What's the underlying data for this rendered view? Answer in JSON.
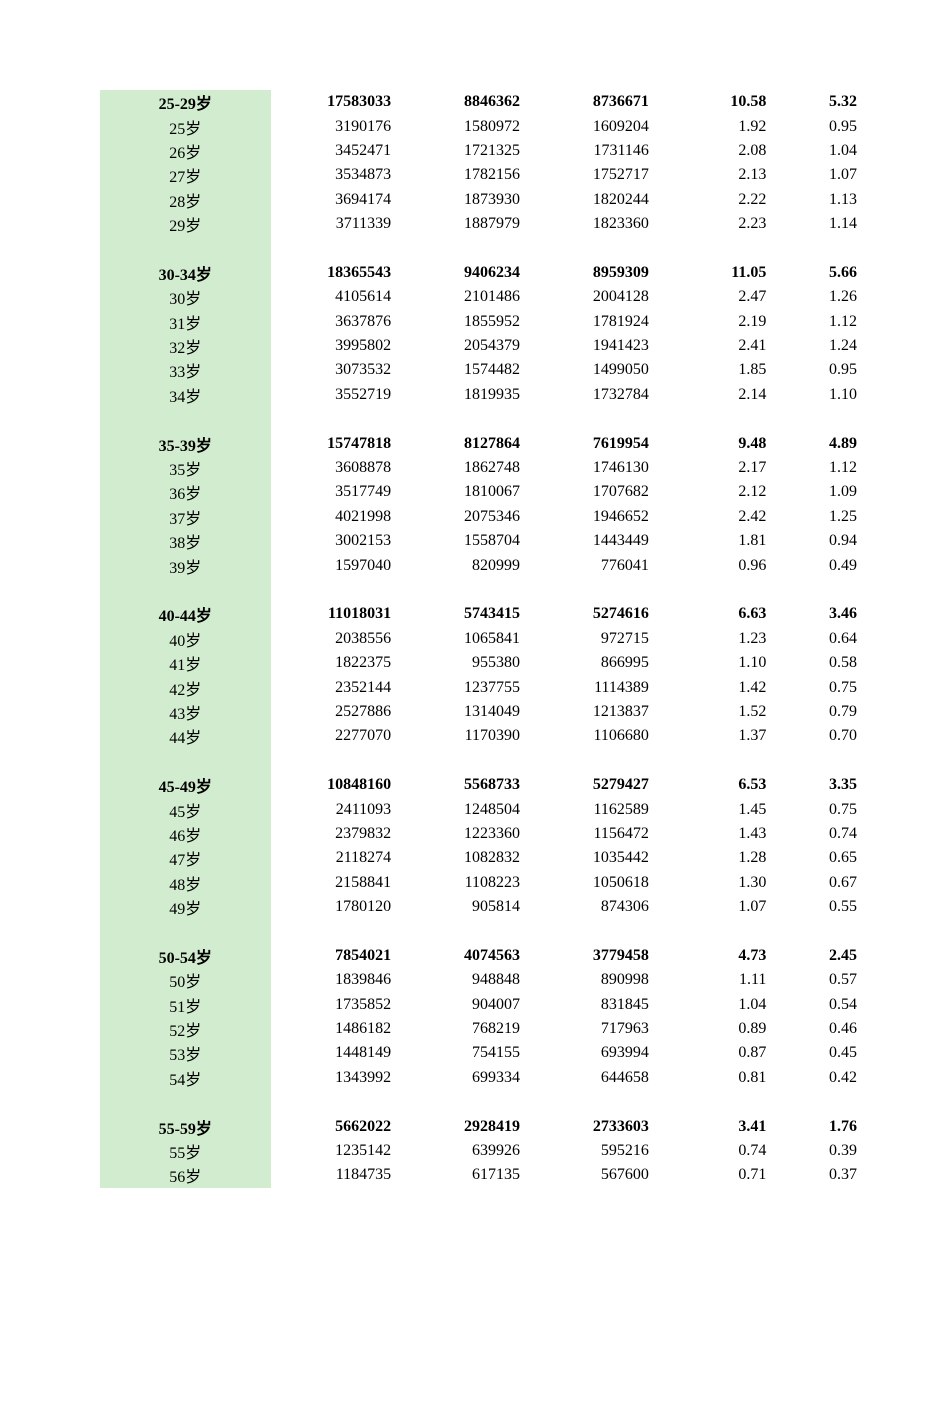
{
  "table": {
    "background_label_color": "#d1ecce",
    "page_background": "#ffffff",
    "text_color": "#000000",
    "font_family": "SimSun / Times New Roman",
    "font_size_pt": 12,
    "column_alignment": [
      "center",
      "right",
      "right",
      "right",
      "right",
      "right"
    ],
    "groups": [
      {
        "header": {
          "label": "25-29岁",
          "v1": "17583033",
          "v2": "8846362",
          "v3": "8736671",
          "v4": "10.58",
          "v5": "5.32"
        },
        "rows": [
          {
            "label": "25岁",
            "v1": "3190176",
            "v2": "1580972",
            "v3": "1609204",
            "v4": "1.92",
            "v5": "0.95"
          },
          {
            "label": "26岁",
            "v1": "3452471",
            "v2": "1721325",
            "v3": "1731146",
            "v4": "2.08",
            "v5": "1.04"
          },
          {
            "label": "27岁",
            "v1": "3534873",
            "v2": "1782156",
            "v3": "1752717",
            "v4": "2.13",
            "v5": "1.07"
          },
          {
            "label": "28岁",
            "v1": "3694174",
            "v2": "1873930",
            "v3": "1820244",
            "v4": "2.22",
            "v5": "1.13"
          },
          {
            "label": "29岁",
            "v1": "3711339",
            "v2": "1887979",
            "v3": "1823360",
            "v4": "2.23",
            "v5": "1.14"
          }
        ]
      },
      {
        "header": {
          "label": "30-34岁",
          "v1": "18365543",
          "v2": "9406234",
          "v3": "8959309",
          "v4": "11.05",
          "v5": "5.66"
        },
        "rows": [
          {
            "label": "30岁",
            "v1": "4105614",
            "v2": "2101486",
            "v3": "2004128",
            "v4": "2.47",
            "v5": "1.26"
          },
          {
            "label": "31岁",
            "v1": "3637876",
            "v2": "1855952",
            "v3": "1781924",
            "v4": "2.19",
            "v5": "1.12"
          },
          {
            "label": "32岁",
            "v1": "3995802",
            "v2": "2054379",
            "v3": "1941423",
            "v4": "2.41",
            "v5": "1.24"
          },
          {
            "label": "33岁",
            "v1": "3073532",
            "v2": "1574482",
            "v3": "1499050",
            "v4": "1.85",
            "v5": "0.95"
          },
          {
            "label": "34岁",
            "v1": "3552719",
            "v2": "1819935",
            "v3": "1732784",
            "v4": "2.14",
            "v5": "1.10"
          }
        ]
      },
      {
        "header": {
          "label": "35-39岁",
          "v1": "15747818",
          "v2": "8127864",
          "v3": "7619954",
          "v4": "9.48",
          "v5": "4.89"
        },
        "rows": [
          {
            "label": "35岁",
            "v1": "3608878",
            "v2": "1862748",
            "v3": "1746130",
            "v4": "2.17",
            "v5": "1.12"
          },
          {
            "label": "36岁",
            "v1": "3517749",
            "v2": "1810067",
            "v3": "1707682",
            "v4": "2.12",
            "v5": "1.09"
          },
          {
            "label": "37岁",
            "v1": "4021998",
            "v2": "2075346",
            "v3": "1946652",
            "v4": "2.42",
            "v5": "1.25"
          },
          {
            "label": "38岁",
            "v1": "3002153",
            "v2": "1558704",
            "v3": "1443449",
            "v4": "1.81",
            "v5": "0.94"
          },
          {
            "label": "39岁",
            "v1": "1597040",
            "v2": "820999",
            "v3": "776041",
            "v4": "0.96",
            "v5": "0.49"
          }
        ]
      },
      {
        "header": {
          "label": "40-44岁",
          "v1": "11018031",
          "v2": "5743415",
          "v3": "5274616",
          "v4": "6.63",
          "v5": "3.46"
        },
        "rows": [
          {
            "label": "40岁",
            "v1": "2038556",
            "v2": "1065841",
            "v3": "972715",
            "v4": "1.23",
            "v5": "0.64"
          },
          {
            "label": "41岁",
            "v1": "1822375",
            "v2": "955380",
            "v3": "866995",
            "v4": "1.10",
            "v5": "0.58"
          },
          {
            "label": "42岁",
            "v1": "2352144",
            "v2": "1237755",
            "v3": "1114389",
            "v4": "1.42",
            "v5": "0.75"
          },
          {
            "label": "43岁",
            "v1": "2527886",
            "v2": "1314049",
            "v3": "1213837",
            "v4": "1.52",
            "v5": "0.79"
          },
          {
            "label": "44岁",
            "v1": "2277070",
            "v2": "1170390",
            "v3": "1106680",
            "v4": "1.37",
            "v5": "0.70"
          }
        ]
      },
      {
        "header": {
          "label": "45-49岁",
          "v1": "10848160",
          "v2": "5568733",
          "v3": "5279427",
          "v4": "6.53",
          "v5": "3.35"
        },
        "rows": [
          {
            "label": "45岁",
            "v1": "2411093",
            "v2": "1248504",
            "v3": "1162589",
            "v4": "1.45",
            "v5": "0.75"
          },
          {
            "label": "46岁",
            "v1": "2379832",
            "v2": "1223360",
            "v3": "1156472",
            "v4": "1.43",
            "v5": "0.74"
          },
          {
            "label": "47岁",
            "v1": "2118274",
            "v2": "1082832",
            "v3": "1035442",
            "v4": "1.28",
            "v5": "0.65"
          },
          {
            "label": "48岁",
            "v1": "2158841",
            "v2": "1108223",
            "v3": "1050618",
            "v4": "1.30",
            "v5": "0.67"
          },
          {
            "label": "49岁",
            "v1": "1780120",
            "v2": "905814",
            "v3": "874306",
            "v4": "1.07",
            "v5": "0.55"
          }
        ]
      },
      {
        "header": {
          "label": "50-54岁",
          "v1": "7854021",
          "v2": "4074563",
          "v3": "3779458",
          "v4": "4.73",
          "v5": "2.45"
        },
        "rows": [
          {
            "label": "50岁",
            "v1": "1839846",
            "v2": "948848",
            "v3": "890998",
            "v4": "1.11",
            "v5": "0.57"
          },
          {
            "label": "51岁",
            "v1": "1735852",
            "v2": "904007",
            "v3": "831845",
            "v4": "1.04",
            "v5": "0.54"
          },
          {
            "label": "52岁",
            "v1": "1486182",
            "v2": "768219",
            "v3": "717963",
            "v4": "0.89",
            "v5": "0.46"
          },
          {
            "label": "53岁",
            "v1": "1448149",
            "v2": "754155",
            "v3": "693994",
            "v4": "0.87",
            "v5": "0.45"
          },
          {
            "label": "54岁",
            "v1": "1343992",
            "v2": "699334",
            "v3": "644658",
            "v4": "0.81",
            "v5": "0.42"
          }
        ]
      },
      {
        "header": {
          "label": "55-59岁",
          "v1": "5662022",
          "v2": "2928419",
          "v3": "2733603",
          "v4": "3.41",
          "v5": "1.76"
        },
        "rows": [
          {
            "label": "55岁",
            "v1": "1235142",
            "v2": "639926",
            "v3": "595216",
            "v4": "0.74",
            "v5": "0.39"
          },
          {
            "label": "56岁",
            "v1": "1184735",
            "v2": "617135",
            "v3": "567600",
            "v4": "0.71",
            "v5": "0.37"
          }
        ]
      }
    ]
  }
}
